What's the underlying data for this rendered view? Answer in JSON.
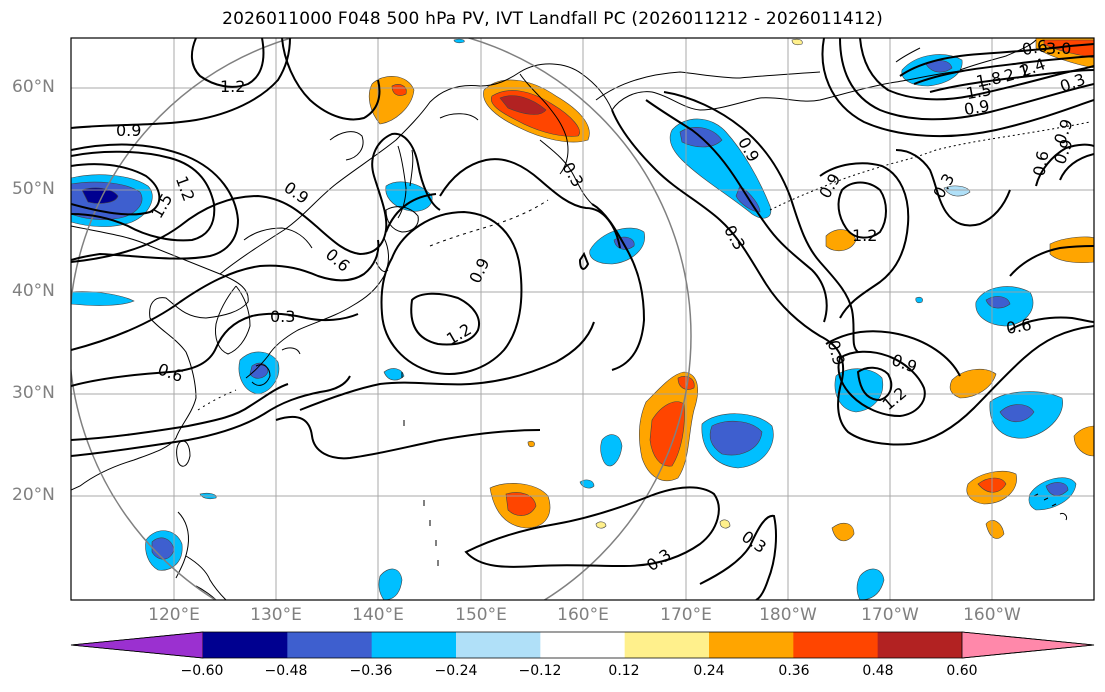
{
  "title": "2026011000 F048 500 hPa PV, IVT Landfall PC (2026011212 - 2026011412)",
  "lat_labels": [
    "60°N",
    "50°N",
    "40°N",
    "30°N",
    "20°N"
  ],
  "lon_labels": [
    "120°E",
    "130°E",
    "140°E",
    "150°E",
    "160°E",
    "170°E",
    "180°W",
    "170°W",
    "160°W"
  ],
  "colorbar": {
    "ticks": [
      "−0.60",
      "−0.48",
      "−0.36",
      "−0.24",
      "−0.12",
      "0.12",
      "0.24",
      "0.36",
      "0.48",
      "0.60"
    ],
    "colors": [
      "#9b30d0",
      "#000090",
      "#3e5fcf",
      "#00bfff",
      "#b0e0f8",
      "#ffffff",
      "#fff08c",
      "#ffa500",
      "#ff4500",
      "#b22222",
      "#ff88aa"
    ]
  },
  "contour_labels": [
    "1.2",
    "0.9",
    "1.2",
    "1.5",
    "0.9",
    "0.6",
    "0.3",
    "0.6",
    "0.3",
    "0.9",
    "1.2",
    "0.9",
    "0.3",
    "0.9",
    "0.9",
    "1.2",
    "0.3",
    "0.6",
    "0.9",
    "1.2",
    "0.6",
    "0.3",
    "0.3",
    "3.0",
    "2.4",
    "2.1",
    "1.8",
    "1.5",
    "0.9",
    "0.9",
    "0.6",
    "0.3",
    "0.9"
  ]
}
